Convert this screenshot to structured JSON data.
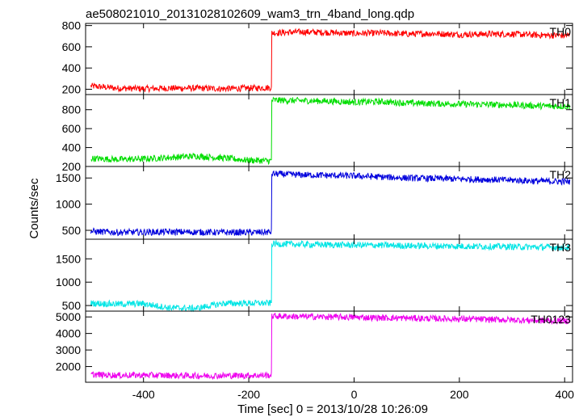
{
  "chart_data": {
    "type": "line",
    "title": "ae508021010_20131028102609_wam3_trn_4band_long.qdp",
    "xlabel": "Time [sec] 0 = 2013/10/28 10:26:09",
    "ylabel": "Counts/sec",
    "xlim": [
      -510,
      415
    ],
    "x_ticks": [
      "-400",
      "-200",
      "0",
      "200",
      "400"
    ],
    "x_tick_values": [
      -400,
      -200,
      0,
      200,
      400
    ],
    "series": [
      {
        "name": "TH0",
        "color": "#ff0000",
        "ylim": [
          150,
          820
        ],
        "y_ticks": [
          "200",
          "400",
          "600",
          "800"
        ],
        "y_tick_values": [
          200,
          400,
          600,
          800
        ],
        "x": [
          -500,
          -450,
          -400,
          -350,
          -300,
          -250,
          -200,
          -160,
          -155,
          -100,
          -50,
          0,
          50,
          100,
          150,
          200,
          250,
          300,
          350,
          410
        ],
        "values": [
          230,
          210,
          205,
          210,
          210,
          205,
          210,
          215,
          730,
          740,
          735,
          725,
          730,
          720,
          725,
          715,
          720,
          720,
          710,
          705
        ]
      },
      {
        "name": "TH1",
        "color": "#00dd00",
        "ylim": [
          200,
          960
        ],
        "y_ticks": [
          "200",
          "400",
          "600",
          "800"
        ],
        "y_tick_values": [
          200,
          400,
          600,
          800
        ],
        "x": [
          -500,
          -450,
          -400,
          -350,
          -300,
          -250,
          -200,
          -160,
          -155,
          -100,
          -50,
          0,
          50,
          100,
          150,
          200,
          250,
          300,
          350,
          410
        ],
        "values": [
          285,
          275,
          280,
          295,
          310,
          290,
          265,
          260,
          900,
          895,
          890,
          880,
          885,
          870,
          865,
          860,
          855,
          850,
          840,
          835
        ]
      },
      {
        "name": "TH2",
        "color": "#0000dd",
        "ylim": [
          330,
          1720
        ],
        "y_ticks": [
          "500",
          "1000",
          "1500"
        ],
        "y_tick_values": [
          500,
          1000,
          1500
        ],
        "x": [
          -500,
          -450,
          -400,
          -350,
          -300,
          -250,
          -200,
          -160,
          -155,
          -100,
          -50,
          0,
          50,
          100,
          150,
          200,
          250,
          300,
          350,
          410
        ],
        "values": [
          480,
          460,
          465,
          470,
          465,
          460,
          460,
          465,
          1580,
          1560,
          1550,
          1540,
          1520,
          1500,
          1490,
          1480,
          1470,
          1460,
          1440,
          1430
        ]
      },
      {
        "name": "TH3",
        "color": "#00e5e5",
        "ylim": [
          380,
          1920
        ],
        "y_ticks": [
          "500",
          "1000",
          "1500"
        ],
        "y_tick_values": [
          500,
          1000,
          1500
        ],
        "x": [
          -500,
          -450,
          -400,
          -350,
          -300,
          -250,
          -200,
          -160,
          -155,
          -100,
          -50,
          0,
          50,
          100,
          150,
          200,
          250,
          300,
          350,
          410
        ],
        "values": [
          550,
          530,
          540,
          450,
          440,
          545,
          550,
          550,
          1820,
          1810,
          1800,
          1795,
          1790,
          1780,
          1775,
          1770,
          1765,
          1760,
          1750,
          1745
        ]
      },
      {
        "name": "TH0123",
        "color": "#ee00ee",
        "ylim": [
          1050,
          5350
        ],
        "y_ticks": [
          "2000",
          "3000",
          "4000",
          "5000"
        ],
        "y_tick_values": [
          2000,
          3000,
          4000,
          5000
        ],
        "x": [
          -500,
          -450,
          -400,
          -350,
          -300,
          -250,
          -200,
          -160,
          -155,
          -100,
          -50,
          0,
          50,
          100,
          150,
          200,
          250,
          300,
          350,
          410
        ],
        "values": [
          1520,
          1470,
          1480,
          1460,
          1440,
          1450,
          1460,
          1470,
          5050,
          5020,
          5000,
          4980,
          4950,
          4930,
          4900,
          4880,
          4850,
          4820,
          4780,
          4760
        ]
      }
    ]
  }
}
